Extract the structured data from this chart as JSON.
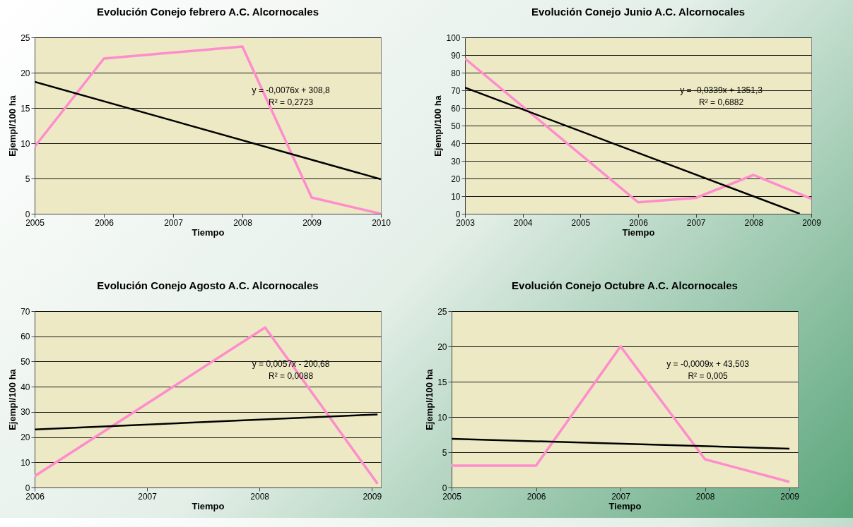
{
  "chart_data": [
    {
      "type": "line",
      "title": "Evolución Conejo febrero A.C. Alcornocales",
      "xlabel": "Tiempo",
      "ylabel": "Ejempl/100 ha",
      "xlim": [
        2005,
        2010
      ],
      "xticks": [
        2005,
        2006,
        2007,
        2008,
        2009,
        2010
      ],
      "ylim": [
        0,
        25
      ],
      "yticks": [
        0,
        5,
        10,
        15,
        20,
        25
      ],
      "grid": "y",
      "series": [
        {
          "color": "#ff8ccc",
          "x": [
            2005,
            2006,
            2008,
            2009,
            2010
          ],
          "values": [
            9.5,
            22,
            23.7,
            2.3,
            0
          ]
        },
        {
          "color": "#000000",
          "x": [
            2005,
            2010
          ],
          "values": [
            18.7,
            4.9
          ]
        }
      ],
      "annotations": [
        "y = -0,0076x + 308,8",
        "R² = 0,2723"
      ]
    },
    {
      "type": "line",
      "title": "Evolución Conejo Junio A.C. Alcornocales",
      "xlabel": "Tiempo",
      "ylabel": "Ejempl/100 ha",
      "xlim": [
        2003,
        2009
      ],
      "xticks": [
        2003,
        2004,
        2005,
        2006,
        2007,
        2008,
        2009
      ],
      "ylim": [
        0,
        100
      ],
      "yticks": [
        0,
        10,
        20,
        30,
        40,
        50,
        60,
        70,
        80,
        90,
        100
      ],
      "grid": "y",
      "series": [
        {
          "color": "#ff8ccc",
          "x": [
            2003,
            2006,
            2007,
            2008,
            2009
          ],
          "values": [
            88,
            6.5,
            9,
            22,
            8.5
          ]
        },
        {
          "color": "#000000",
          "x": [
            2003,
            2008.8
          ],
          "values": [
            71.5,
            0
          ]
        }
      ],
      "annotations": [
        "y = -0,0339x + 1351,3",
        "R² = 0,6882"
      ]
    },
    {
      "type": "line",
      "title": "Evolución Conejo Agosto A.C. Alcornocales",
      "xlabel": "Tiempo",
      "ylabel": "Ejempl/100 ha",
      "xlim": [
        2006,
        2009.08
      ],
      "xticks": [
        2006,
        2007,
        2008,
        2009
      ],
      "ylim": [
        0,
        70
      ],
      "yticks": [
        0,
        10,
        20,
        30,
        40,
        50,
        60,
        70
      ],
      "grid": "y",
      "series": [
        {
          "color": "#ff8ccc",
          "x": [
            2006,
            2008.05,
            2009.05
          ],
          "values": [
            4.5,
            63.5,
            1.5
          ]
        },
        {
          "color": "#000000",
          "x": [
            2006,
            2009.05
          ],
          "values": [
            23,
            29
          ]
        }
      ],
      "annotations": [
        "y = 0,0057x - 200,68",
        "R² = 0,0088"
      ]
    },
    {
      "type": "line",
      "title": "Evolución Conejo Octubre A.C. Alcornocales",
      "xlabel": "Tiempo",
      "ylabel": "Ejempl/100 ha",
      "xlim": [
        2005,
        2009.1
      ],
      "xticks": [
        2005,
        2006,
        2007,
        2008,
        2009
      ],
      "ylim": [
        0,
        25
      ],
      "yticks": [
        0,
        5,
        10,
        15,
        20,
        25
      ],
      "grid": "y",
      "series": [
        {
          "color": "#ff8ccc",
          "x": [
            2005,
            2006,
            2007,
            2008,
            2009
          ],
          "values": [
            3.1,
            3.1,
            20,
            4,
            0.8
          ]
        },
        {
          "color": "#000000",
          "x": [
            2005,
            2009
          ],
          "values": [
            6.9,
            5.5
          ]
        }
      ],
      "annotations": [
        "y = -0,0009x + 43,503",
        "R² = 0,005"
      ]
    }
  ]
}
